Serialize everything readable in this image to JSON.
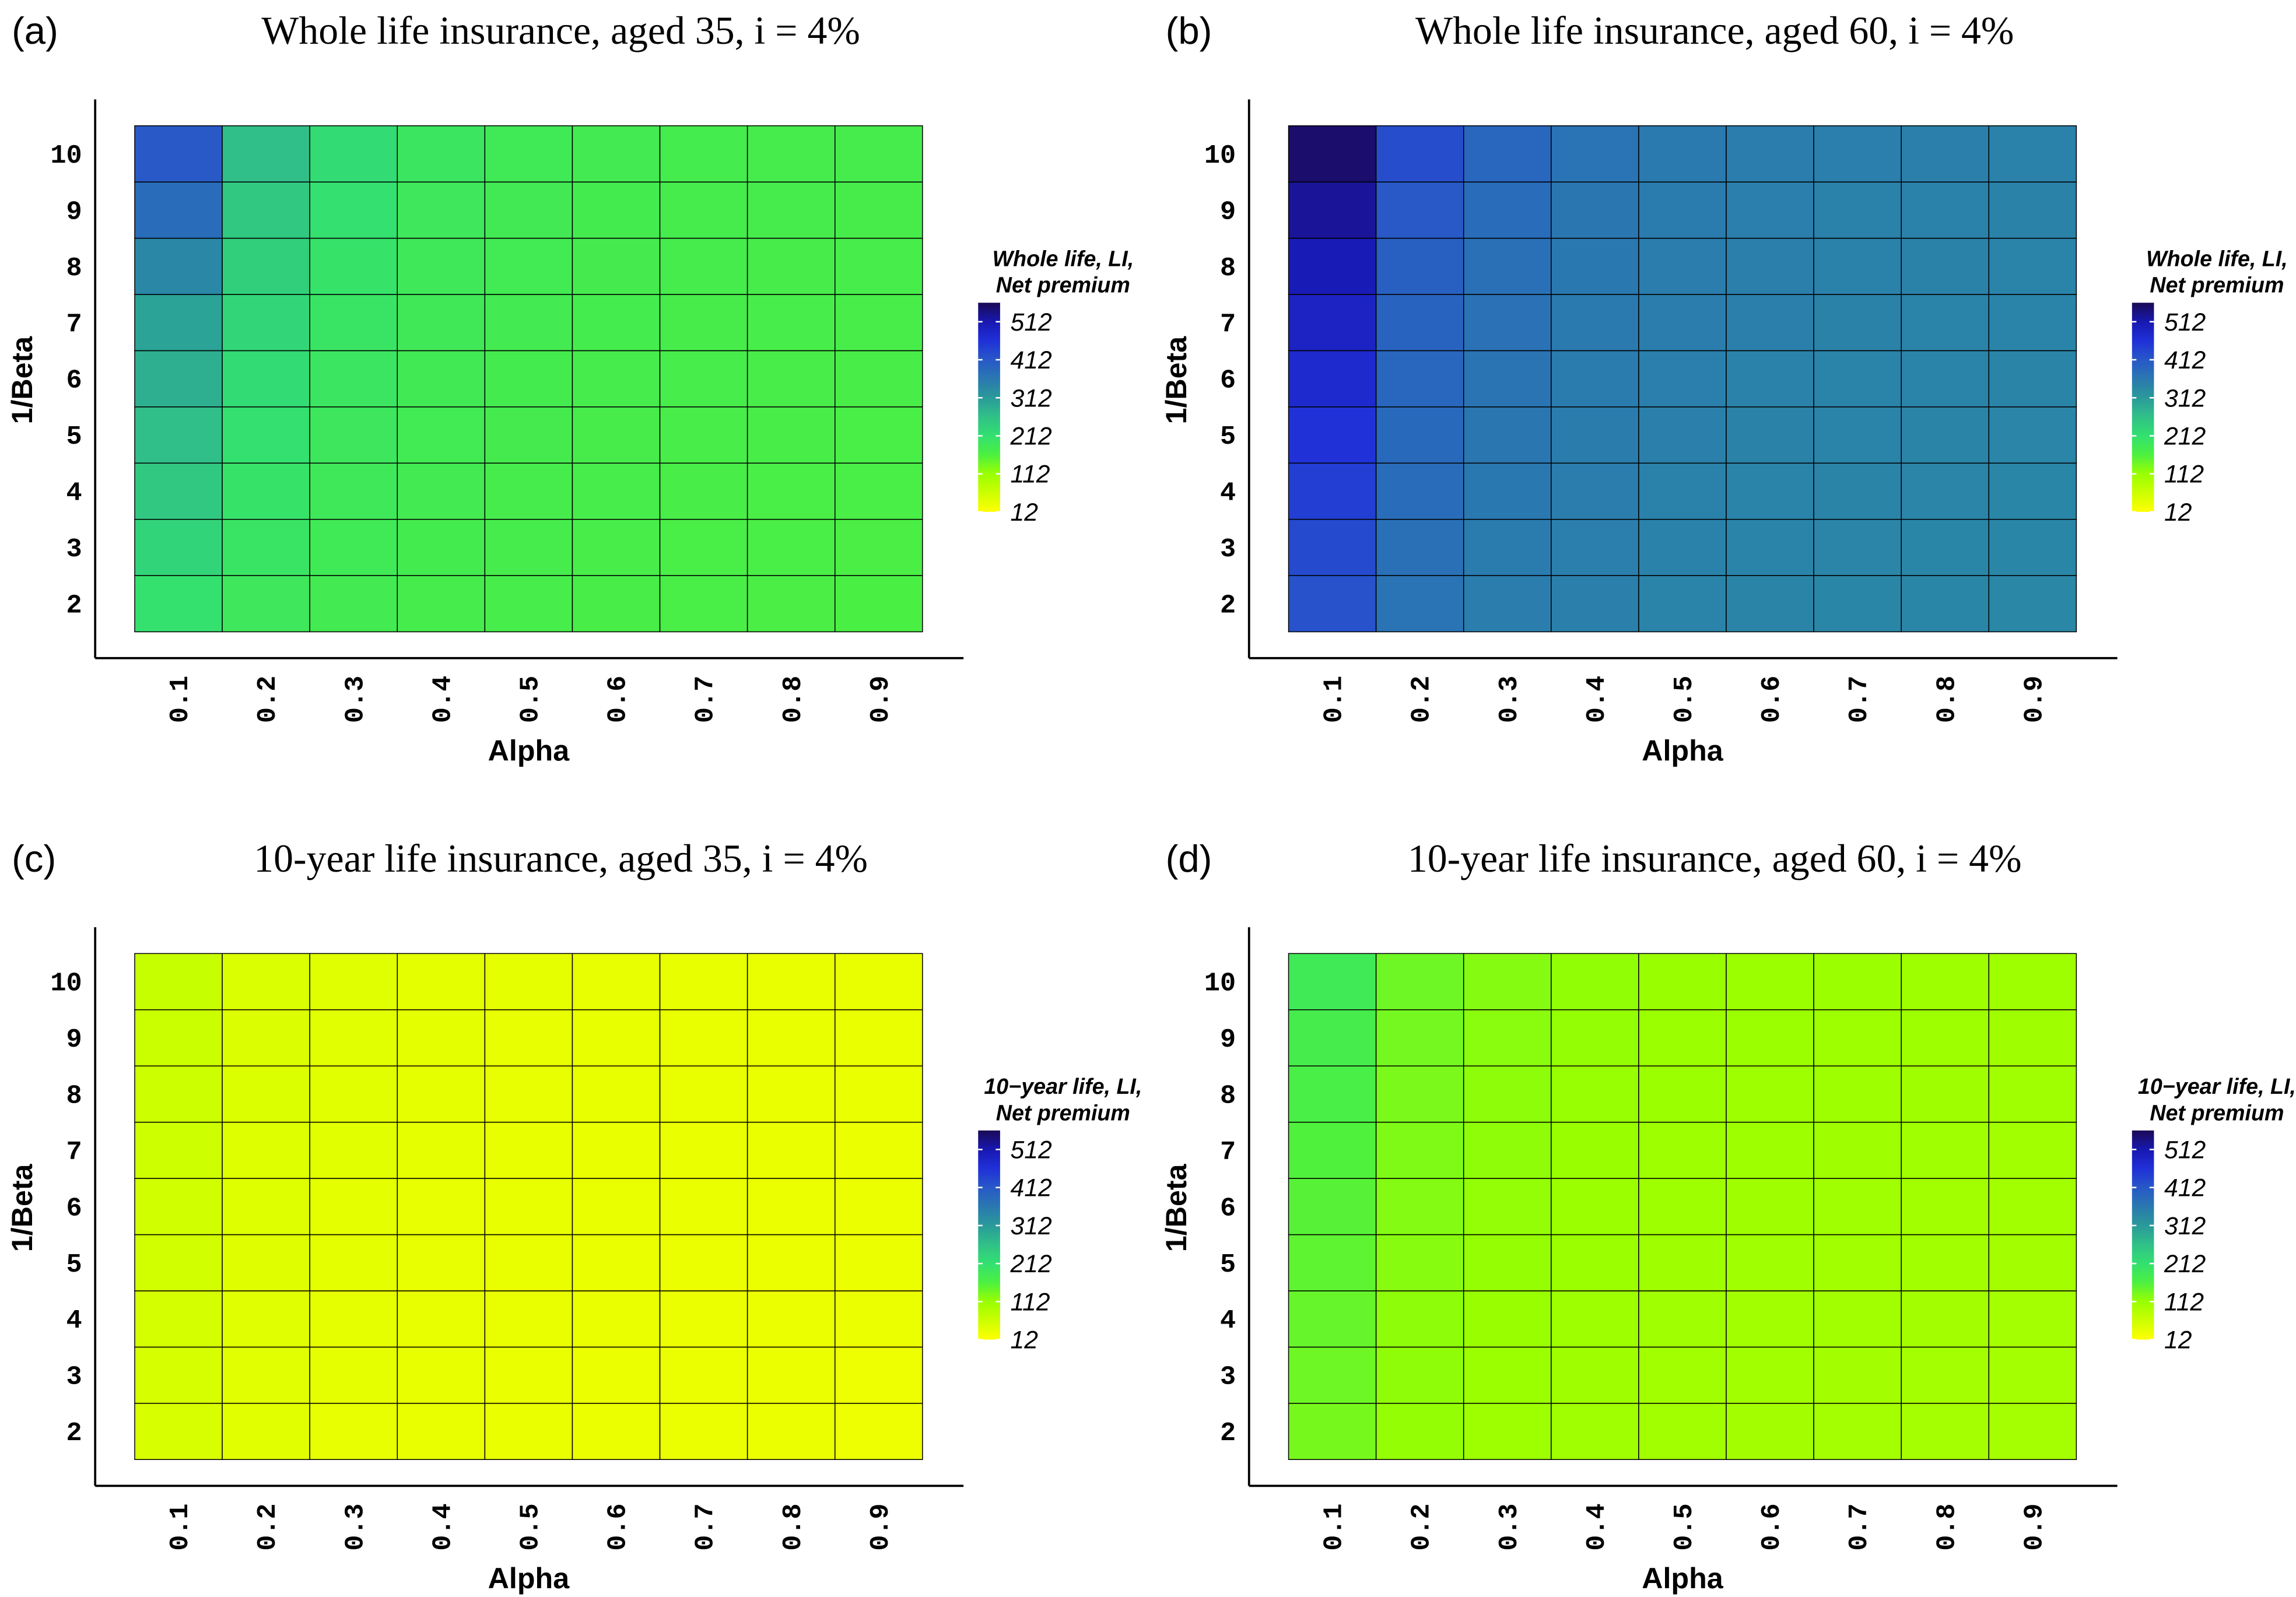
{
  "chart_data": [
    {
      "type": "heatmap",
      "panel_label": "(a)",
      "title": "Whole life insurance, aged 35, i = 4%",
      "x_label": "Alpha",
      "y_label": "1/Beta",
      "categories": [
        "0.1",
        "0.2",
        "0.3",
        "0.4",
        "0.5",
        "0.6",
        "0.7",
        "0.8",
        "0.9"
      ],
      "y_categories": [
        "2",
        "3",
        "4",
        "5",
        "6",
        "7",
        "8",
        "9",
        "10"
      ],
      "values": [
        [
          210,
          190,
          180,
          175,
          172,
          170,
          168,
          167,
          166
        ],
        [
          230,
          200,
          185,
          178,
          174,
          171,
          169,
          168,
          167
        ],
        [
          250,
          205,
          188,
          180,
          175,
          172,
          170,
          169,
          168
        ],
        [
          265,
          212,
          192,
          182,
          177,
          173,
          171,
          170,
          169
        ],
        [
          285,
          220,
          196,
          184,
          178,
          174,
          172,
          171,
          170
        ],
        [
          300,
          228,
          200,
          186,
          180,
          176,
          173,
          172,
          171
        ],
        [
          340,
          238,
          205,
          188,
          182,
          177,
          174,
          173,
          172
        ],
        [
          380,
          250,
          212,
          190,
          183,
          178,
          175,
          174,
          173
        ],
        [
          410,
          265,
          220,
          195,
          185,
          180,
          176,
          175,
          174
        ]
      ],
      "colorbar_title": [
        "Whole life, LI,",
        "Net premium"
      ],
      "zlim": [
        12,
        562
      ],
      "zticks": [
        12,
        112,
        212,
        312,
        412,
        512
      ],
      "colorscale": [
        "#ffff00",
        "#ccff00",
        "#99ff00",
        "#4cf040",
        "#33e070",
        "#30c088",
        "#2a9a9a",
        "#2a78b0",
        "#2858c8",
        "#2030d8",
        "#1818b0",
        "#1a0a55"
      ]
    },
    {
      "type": "heatmap",
      "panel_label": "(b)",
      "title": "Whole life insurance, aged 60, i = 4%",
      "x_label": "Alpha",
      "y_label": "1/Beta",
      "categories": [
        "0.1",
        "0.2",
        "0.3",
        "0.4",
        "0.5",
        "0.6",
        "0.7",
        "0.8",
        "0.9"
      ],
      "y_categories": [
        "2",
        "3",
        "4",
        "5",
        "6",
        "7",
        "8",
        "9",
        "10"
      ],
      "values": [
        [
          420,
          370,
          355,
          350,
          346,
          344,
          342,
          341,
          340
        ],
        [
          430,
          375,
          358,
          352,
          348,
          345,
          343,
          342,
          341
        ],
        [
          445,
          380,
          362,
          354,
          349,
          346,
          344,
          343,
          342
        ],
        [
          460,
          385,
          365,
          356,
          350,
          347,
          345,
          344,
          343
        ],
        [
          475,
          390,
          368,
          358,
          352,
          348,
          346,
          345,
          344
        ],
        [
          490,
          395,
          372,
          360,
          354,
          350,
          347,
          346,
          345
        ],
        [
          505,
          400,
          375,
          362,
          355,
          351,
          348,
          347,
          346
        ],
        [
          525,
          410,
          380,
          365,
          357,
          352,
          349,
          348,
          347
        ],
        [
          550,
          425,
          390,
          370,
          360,
          355,
          352,
          350,
          348
        ]
      ],
      "colorbar_title": [
        "Whole life, LI,",
        "Net premium"
      ],
      "zlim": [
        12,
        562
      ],
      "zticks": [
        12,
        112,
        212,
        312,
        412,
        512
      ],
      "colorscale": [
        "#ffff00",
        "#ccff00",
        "#99ff00",
        "#4cf040",
        "#33e070",
        "#30c088",
        "#2a9a9a",
        "#2a78b0",
        "#2858c8",
        "#2030d8",
        "#1818b0",
        "#1a0a55"
      ]
    },
    {
      "type": "heatmap",
      "panel_label": "(c)",
      "title": "10-year life insurance, aged 35, i = 4%",
      "x_label": "Alpha",
      "y_label": "1/Beta",
      "categories": [
        "0.1",
        "0.2",
        "0.3",
        "0.4",
        "0.5",
        "0.6",
        "0.7",
        "0.8",
        "0.9"
      ],
      "y_categories": [
        "2",
        "3",
        "4",
        "5",
        "6",
        "7",
        "8",
        "9",
        "10"
      ],
      "values": [
        [
          50,
          40,
          36,
          34,
          33,
          32,
          31,
          31,
          30
        ],
        [
          52,
          41,
          37,
          35,
          33,
          32,
          31,
          31,
          30
        ],
        [
          54,
          42,
          37,
          35,
          34,
          33,
          32,
          31,
          31
        ],
        [
          56,
          43,
          38,
          36,
          34,
          33,
          32,
          32,
          31
        ],
        [
          58,
          44,
          39,
          36,
          35,
          34,
          33,
          32,
          32
        ],
        [
          60,
          45,
          40,
          37,
          35,
          34,
          33,
          33,
          32
        ],
        [
          62,
          46,
          40,
          37,
          36,
          35,
          34,
          33,
          33
        ],
        [
          64,
          47,
          41,
          38,
          36,
          35,
          34,
          34,
          33
        ],
        [
          68,
          49,
          42,
          39,
          37,
          36,
          35,
          34,
          34
        ]
      ],
      "colorbar_title": [
        "10−year life, LI,",
        "Net premium"
      ],
      "zlim": [
        12,
        562
      ],
      "zticks": [
        12,
        112,
        212,
        312,
        412,
        512
      ],
      "colorscale": [
        "#ffff00",
        "#ccff00",
        "#99ff00",
        "#4cf040",
        "#33e070",
        "#30c088",
        "#2a9a9a",
        "#2a78b0",
        "#2858c8",
        "#2030d8",
        "#1818b0",
        "#1a0a55"
      ]
    },
    {
      "type": "heatmap",
      "panel_label": "(d)",
      "title": "10-year life insurance, aged 60, i = 4%",
      "x_label": "Alpha",
      "y_label": "1/Beta",
      "categories": [
        "0.1",
        "0.2",
        "0.3",
        "0.4",
        "0.5",
        "0.6",
        "0.7",
        "0.8",
        "0.9"
      ],
      "y_categories": [
        "2",
        "3",
        "4",
        "5",
        "6",
        "7",
        "8",
        "9",
        "10"
      ],
      "values": [
        [
          135,
          115,
          108,
          105,
          103,
          102,
          101,
          100,
          100
        ],
        [
          140,
          118,
          110,
          106,
          104,
          103,
          102,
          101,
          101
        ],
        [
          145,
          120,
          112,
          108,
          105,
          104,
          103,
          102,
          101
        ],
        [
          150,
          123,
          114,
          109,
          106,
          105,
          104,
          103,
          102
        ],
        [
          155,
          126,
          116,
          110,
          107,
          106,
          105,
          104,
          103
        ],
        [
          160,
          129,
          118,
          112,
          108,
          107,
          106,
          105,
          104
        ],
        [
          168,
          132,
          120,
          113,
          109,
          108,
          107,
          106,
          105
        ],
        [
          175,
          136,
          122,
          115,
          110,
          109,
          108,
          107,
          106
        ],
        [
          185,
          140,
          125,
          117,
          112,
          110,
          109,
          108,
          107
        ]
      ],
      "colorbar_title": [
        "10−year life, LI,",
        "Net premium"
      ],
      "zlim": [
        12,
        562
      ],
      "zticks": [
        12,
        112,
        212,
        312,
        412,
        512
      ],
      "colorscale": [
        "#ffff00",
        "#ccff00",
        "#99ff00",
        "#4cf040",
        "#33e070",
        "#30c088",
        "#2a9a9a",
        "#2a78b0",
        "#2858c8",
        "#2030d8",
        "#1818b0",
        "#1a0a55"
      ]
    }
  ]
}
